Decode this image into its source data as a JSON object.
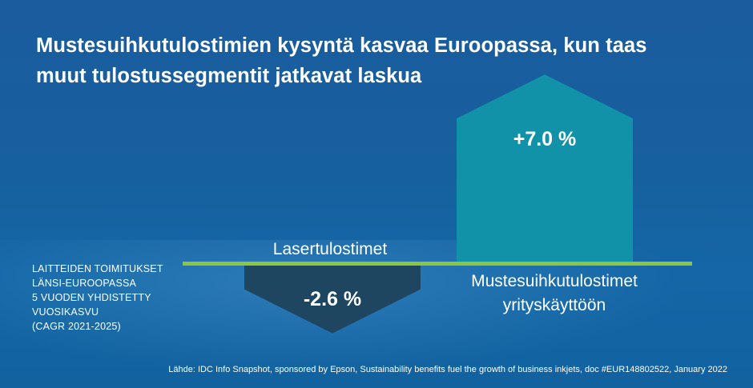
{
  "title": "Mustesuihkutulostimien kysyntä kasvaa Euroopassa, kun taas muut tulostussegmentit jatkavat laskua",
  "left_note": {
    "lines": [
      "LAITTEIDEN TOIMITUKSET",
      "LÄNSI-EUROOPASSA",
      "5 VUODEN YHDISTETTY",
      "VUOSIKASVU",
      "(CAGR 2021-2025)"
    ]
  },
  "source": "Lähde: IDC Info Snapshot, sponsored by Epson, Sustainability benefits fuel the growth of business inkjets, doc #EUR148802522, January 2022",
  "colors": {
    "baseline": "#8cc63f",
    "positive": "#1192a8",
    "negative": "#1e4660"
  },
  "chart_data": {
    "type": "bar",
    "categories": [
      "Lasertulostimet",
      "Mustesuihkutulostimet yrityskäyttöön"
    ],
    "category_label_lines": [
      [
        "Lasertulostimet"
      ],
      [
        "Mustesuihkutulostimet",
        "yrityskäyttöön"
      ]
    ],
    "values": [
      -2.6,
      7.0
    ],
    "value_labels": [
      "-2.6 %",
      "+7.0 %"
    ],
    "unit": "%"
  }
}
